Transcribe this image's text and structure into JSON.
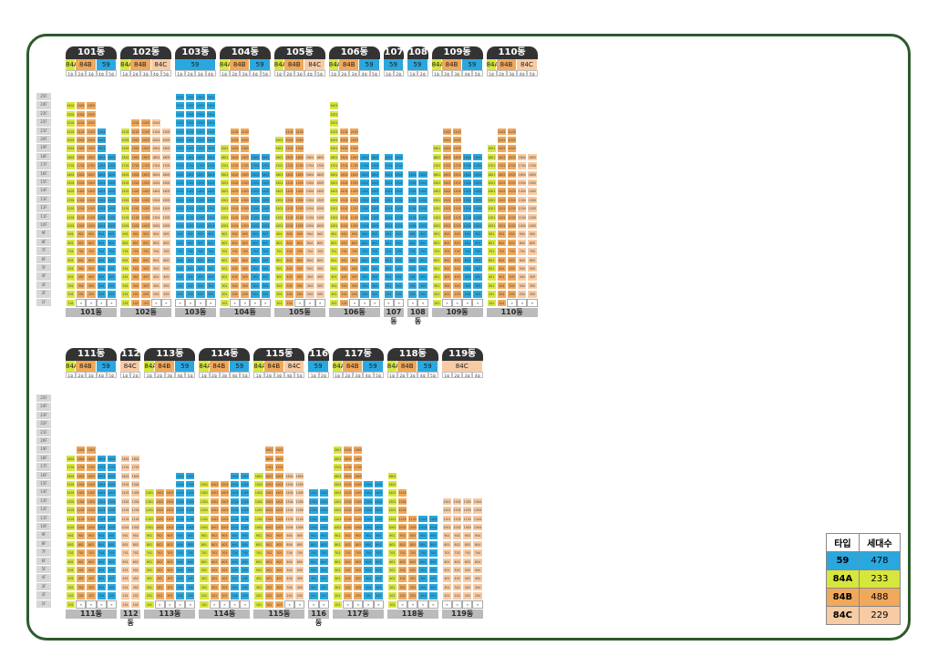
{
  "colors": {
    "59": "#29a8e0",
    "84A": "#d7e63c",
    "84B": "#f0a85a",
    "84C": "#f7cba4",
    "empty": "#ffffff"
  },
  "floor_labels": [
    "25F",
    "24F",
    "23F",
    "22F",
    "21F",
    "20F",
    "19F",
    "18F",
    "17F",
    "16F",
    "15F",
    "14F",
    "13F",
    "12F",
    "11F",
    "10F",
    "9F",
    "8F",
    "7F",
    "6F",
    "5F",
    "4F",
    "3F",
    "2F",
    "1F"
  ],
  "rows": [
    {
      "buildings": [
        {
          "name": "101동",
          "types": [
            "84A",
            "84B",
            "59"
          ],
          "lines": [
            "1호",
            "2호",
            "3호",
            "4호",
            "5호"
          ],
          "line_types": [
            "84A",
            "84B",
            "84B",
            "59",
            "59"
          ],
          "top": [
            24,
            24,
            24,
            21,
            18
          ],
          "pilotis": [
            0,
            1,
            1,
            1,
            1
          ]
        },
        {
          "name": "102동",
          "types": [
            "84A",
            "84B",
            "84C"
          ],
          "lines": [
            "1호",
            "2호",
            "3호",
            "4호",
            "5호"
          ],
          "line_types": [
            "84A",
            "84B",
            "84B",
            "84C",
            "84C"
          ],
          "top": [
            21,
            22,
            22,
            22,
            21
          ],
          "pilotis": [
            0,
            0,
            0,
            1,
            1
          ]
        },
        {
          "name": "103동",
          "types": [
            "59"
          ],
          "lines": [
            "1호",
            "2호",
            "3호",
            "4호"
          ],
          "line_types": [
            "59",
            "59",
            "59",
            "59"
          ],
          "top": [
            25,
            25,
            25,
            25
          ],
          "pilotis": [
            1,
            1,
            1,
            1
          ]
        },
        {
          "name": "104동",
          "types": [
            "84A",
            "84B",
            "59"
          ],
          "lines": [
            "1호",
            "2호",
            "3호",
            "4호",
            "5호"
          ],
          "line_types": [
            "84A",
            "84B",
            "84B",
            "59",
            "59"
          ],
          "top": [
            19,
            21,
            21,
            18,
            18
          ],
          "pilotis": [
            0,
            1,
            1,
            1,
            1
          ]
        },
        {
          "name": "105동",
          "types": [
            "84A",
            "84B",
            "84C"
          ],
          "lines": [
            "1호",
            "2호",
            "3호",
            "4호",
            "5호"
          ],
          "line_types": [
            "84A",
            "84B",
            "84B",
            "84C",
            "84C"
          ],
          "top": [
            20,
            21,
            21,
            18,
            18
          ],
          "pilotis": [
            0,
            0,
            1,
            1,
            1
          ]
        },
        {
          "name": "106동",
          "types": [
            "84A",
            "84B",
            "59"
          ],
          "lines": [
            "1호",
            "2호",
            "3호",
            "4호",
            "5호"
          ],
          "line_types": [
            "84A",
            "84B",
            "84B",
            "59",
            "59"
          ],
          "top": [
            24,
            21,
            21,
            18,
            18
          ],
          "pilotis": [
            0,
            0,
            1,
            1,
            1
          ]
        },
        {
          "name": "107동",
          "types": [
            "59"
          ],
          "lines": [
            "1호",
            "2호"
          ],
          "line_types": [
            "59",
            "59"
          ],
          "top": [
            18,
            18
          ],
          "pilotis": [
            1,
            1
          ]
        },
        {
          "name": "108동",
          "types": [
            "59"
          ],
          "lines": [
            "1호",
            "2호"
          ],
          "line_types": [
            "59",
            "59"
          ],
          "top": [
            16,
            16
          ],
          "pilotis": [
            1,
            1
          ]
        },
        {
          "name": "109동",
          "types": [
            "84A",
            "84B",
            "59"
          ],
          "lines": [
            "1호",
            "2호",
            "3호",
            "4호",
            "5호"
          ],
          "line_types": [
            "84A",
            "84B",
            "84B",
            "59",
            "59"
          ],
          "top": [
            19,
            21,
            21,
            18,
            18
          ],
          "pilotis": [
            0,
            1,
            1,
            1,
            1
          ]
        },
        {
          "name": "110동",
          "types": [
            "84A",
            "84B",
            "84C"
          ],
          "lines": [
            "1호",
            "2호",
            "3호",
            "4호",
            "5호"
          ],
          "line_types": [
            "84A",
            "84B",
            "84B",
            "84C",
            "84C"
          ],
          "top": [
            19,
            21,
            21,
            18,
            18
          ],
          "pilotis": [
            0,
            0,
            1,
            1,
            1
          ]
        }
      ]
    },
    {
      "buildings": [
        {
          "name": "111동",
          "types": [
            "84A",
            "84B",
            "59"
          ],
          "lines": [
            "1호",
            "2호",
            "3호",
            "4호",
            "5호"
          ],
          "line_types": [
            "84A",
            "84B",
            "84B",
            "59",
            "59"
          ],
          "top": [
            18,
            19,
            19,
            18,
            18
          ],
          "pilotis": [
            0,
            1,
            1,
            1,
            1
          ]
        },
        {
          "name": "112동",
          "types": [
            "84C"
          ],
          "lines": [
            "1호",
            "2호"
          ],
          "line_types": [
            "84C",
            "84C"
          ],
          "top": [
            18,
            18
          ],
          "pilotis": [
            0,
            0
          ]
        },
        {
          "name": "113동",
          "types": [
            "84A",
            "84B",
            "59"
          ],
          "lines": [
            "1호",
            "2호",
            "3호",
            "4호",
            "5호"
          ],
          "line_types": [
            "84A",
            "84B",
            "84B",
            "59",
            "59"
          ],
          "top": [
            14,
            14,
            14,
            16,
            16
          ],
          "pilotis": [
            0,
            1,
            1,
            1,
            1
          ]
        },
        {
          "name": "114동",
          "types": [
            "84A",
            "84B",
            "59"
          ],
          "lines": [
            "1호",
            "2호",
            "3호",
            "4호",
            "5호"
          ],
          "line_types": [
            "84A",
            "84B",
            "84B",
            "59",
            "59"
          ],
          "top": [
            15,
            15,
            15,
            16,
            16
          ],
          "pilotis": [
            0,
            1,
            1,
            1,
            1
          ]
        },
        {
          "name": "115동",
          "types": [
            "84A",
            "84B",
            "84C"
          ],
          "lines": [
            "1호",
            "2호",
            "3호",
            "4호",
            "5호"
          ],
          "line_types": [
            "84A",
            "84B",
            "84B",
            "84C",
            "84C"
          ],
          "top": [
            16,
            19,
            19,
            16,
            16
          ],
          "pilotis": [
            0,
            0,
            0,
            1,
            1
          ]
        },
        {
          "name": "116동",
          "types": [
            "59"
          ],
          "lines": [
            "1호",
            "2호"
          ],
          "line_types": [
            "59",
            "59"
          ],
          "top": [
            14,
            14
          ],
          "pilotis": [
            1,
            1
          ]
        },
        {
          "name": "117동",
          "types": [
            "84A",
            "84B",
            "59"
          ],
          "lines": [
            "1호",
            "2호",
            "3호",
            "4호",
            "5호"
          ],
          "line_types": [
            "84A",
            "84B",
            "84B",
            "59",
            "59"
          ],
          "top": [
            19,
            19,
            19,
            15,
            15
          ],
          "pilotis": [
            0,
            1,
            1,
            1,
            1
          ]
        },
        {
          "name": "118동",
          "types": [
            "84A",
            "84B",
            "59"
          ],
          "lines": [
            "1호",
            "2호",
            "3호",
            "4호",
            "5호"
          ],
          "line_types": [
            "84A",
            "84B",
            "84B",
            "59",
            "59"
          ],
          "top": [
            16,
            14,
            11,
            11,
            11
          ],
          "pilotis": [
            0,
            1,
            1,
            1,
            1
          ]
        },
        {
          "name": "119동",
          "types": [
            "84C"
          ],
          "lines": [
            "1호",
            "2호",
            "3호",
            "4호"
          ],
          "line_types": [
            "84C",
            "84C",
            "84C",
            "84C"
          ],
          "top": [
            13,
            13,
            13,
            13
          ],
          "pilotis": [
            1,
            1,
            1,
            1
          ]
        }
      ]
    }
  ],
  "legend": {
    "header_type": "타입",
    "header_count": "세대수",
    "rows": [
      {
        "type": "59",
        "count": "478",
        "color": "#29a8e0"
      },
      {
        "type": "84A",
        "count": "233",
        "color": "#d7e63c"
      },
      {
        "type": "84B",
        "count": "488",
        "color": "#f0a85a"
      },
      {
        "type": "84C",
        "count": "229",
        "color": "#f7cba4"
      }
    ]
  }
}
